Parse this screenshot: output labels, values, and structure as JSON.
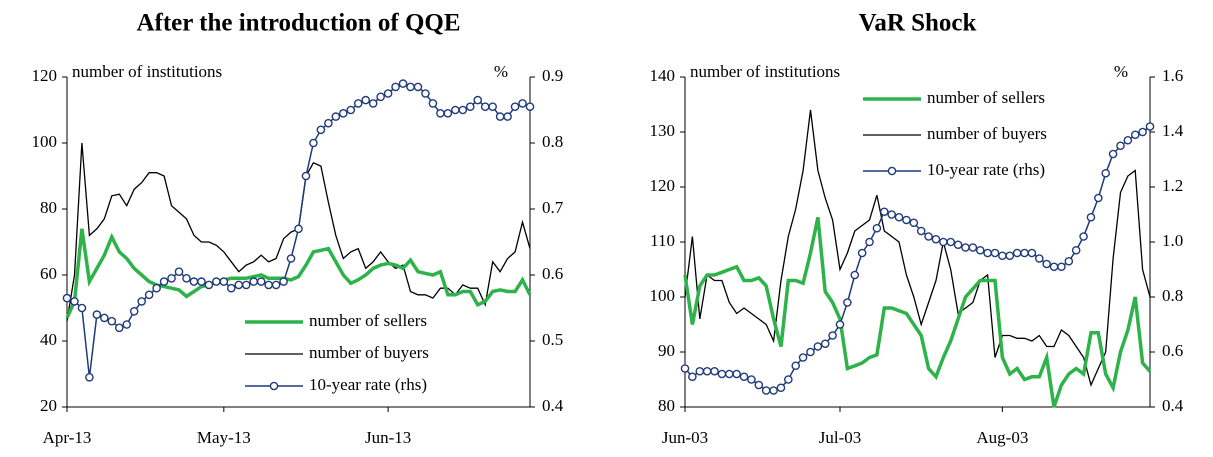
{
  "chart_data": [
    {
      "type": "line",
      "title": "After the introduction of QQE",
      "ylabel": "number of institutions",
      "y2label": "%",
      "legend": "lower right",
      "categories": [
        "Apr-13",
        null,
        null,
        null,
        null,
        null,
        null,
        null,
        null,
        null,
        null,
        null,
        null,
        null,
        null,
        null,
        null,
        null,
        null,
        null,
        null,
        "May-13",
        null,
        null,
        null,
        null,
        null,
        null,
        null,
        null,
        null,
        null,
        null,
        null,
        null,
        null,
        null,
        null,
        null,
        null,
        null,
        null,
        null,
        "Jun-13",
        null,
        null,
        null,
        null,
        null,
        null,
        null,
        null,
        null,
        null,
        null,
        null,
        null,
        null,
        null,
        null,
        null,
        null,
        null
      ],
      "ylim": [
        20,
        120
      ],
      "yticks": [
        20,
        40,
        60,
        80,
        100,
        120
      ],
      "y2lim": [
        0.4,
        0.9
      ],
      "y2ticks": [
        0.4,
        0.5,
        0.6,
        0.7,
        0.8,
        0.9
      ],
      "series": [
        {
          "name": "number of sellers",
          "color": "#2db34a",
          "values": [
            47,
            52,
            74,
            58,
            62,
            66,
            71.5,
            67,
            65,
            62,
            60,
            58,
            57,
            56.5,
            56,
            55.5,
            53.5,
            55,
            56.5,
            57,
            58,
            58.5,
            59,
            59,
            59,
            59.5,
            60,
            59,
            59,
            59,
            58.5,
            59.5,
            63,
            67,
            67.5,
            68,
            64,
            60,
            57.5,
            58.5,
            60,
            62,
            63,
            63.5,
            63,
            62,
            64.5,
            61,
            60.5,
            60,
            61,
            54,
            54,
            55,
            55,
            51,
            52,
            55,
            55.5,
            55,
            55,
            58.5,
            54
          ]
        },
        {
          "name": "number of buyers",
          "color": "#000000",
          "values": [
            46,
            60,
            100,
            72,
            74,
            77,
            84,
            84.5,
            81,
            86,
            88,
            91,
            91,
            90,
            81,
            79,
            77,
            72,
            70,
            70,
            69,
            67,
            64,
            61,
            63,
            64,
            66,
            64,
            65,
            71,
            73,
            74,
            90,
            94,
            93,
            82,
            72,
            65,
            67,
            68,
            62,
            64,
            67,
            64,
            62,
            63,
            55,
            54,
            54,
            53,
            56,
            56,
            54,
            57,
            56,
            56,
            51,
            64,
            61,
            65,
            67,
            76,
            68
          ]
        },
        {
          "name": "10-year rate (rhs)",
          "color": "#1f3a7a",
          "axis": "y2",
          "values": [
            0.565,
            0.56,
            0.55,
            0.445,
            0.54,
            0.535,
            0.53,
            0.52,
            0.525,
            0.545,
            0.56,
            0.57,
            0.58,
            0.59,
            0.595,
            0.605,
            0.595,
            0.59,
            0.59,
            0.585,
            0.59,
            0.59,
            0.58,
            0.585,
            0.585,
            0.59,
            0.59,
            0.585,
            0.585,
            0.59,
            0.625,
            0.67,
            0.75,
            0.8,
            0.82,
            0.83,
            0.84,
            0.845,
            0.85,
            0.86,
            0.865,
            0.86,
            0.87,
            0.875,
            0.885,
            0.89,
            0.885,
            0.885,
            0.875,
            0.86,
            0.845,
            0.845,
            0.85,
            0.85,
            0.855,
            0.865,
            0.855,
            0.855,
            0.84,
            0.84,
            0.855,
            0.86,
            0.855
          ]
        }
      ]
    },
    {
      "type": "line",
      "title": "VaR Shock",
      "ylabel": "number of institutions",
      "y2label": "%",
      "legend": "upper center",
      "categories": [
        "Jun-03",
        null,
        null,
        null,
        null,
        null,
        null,
        null,
        null,
        null,
        null,
        null,
        null,
        null,
        null,
        null,
        null,
        null,
        null,
        null,
        null,
        "Jul-03",
        null,
        null,
        null,
        null,
        null,
        null,
        null,
        null,
        null,
        null,
        null,
        null,
        null,
        null,
        null,
        null,
        null,
        null,
        null,
        null,
        null,
        "Aug-03",
        null,
        null,
        null,
        null,
        null,
        null,
        null,
        null,
        null,
        null,
        null,
        null,
        null,
        null,
        null,
        null,
        null,
        null,
        null,
        null
      ],
      "ylim": [
        80,
        140
      ],
      "yticks": [
        80,
        90,
        100,
        110,
        120,
        130,
        140
      ],
      "y2lim": [
        0.4,
        1.6
      ],
      "y2ticks": [
        0.4,
        0.6,
        0.8,
        {
          "value": 1,
          "label": "1.0"
        },
        1.2,
        1.4,
        1.6
      ],
      "series": [
        {
          "name": "number of sellers",
          "color": "#2db34a",
          "values": [
            104,
            95,
            102,
            104,
            104,
            104.5,
            105,
            105.5,
            103,
            103,
            103.5,
            102,
            96,
            91,
            103,
            103,
            102.5,
            108,
            114.5,
            101,
            99,
            96,
            87,
            87.5,
            88,
            89,
            89.5,
            98,
            98,
            97.5,
            97,
            95,
            93,
            87,
            85.5,
            89,
            92,
            96,
            100,
            101.5,
            103,
            103,
            103,
            89,
            86,
            87,
            85,
            85.5,
            85.5,
            89,
            80,
            84,
            86,
            87,
            86,
            93.5,
            93.5,
            86,
            83.5,
            90,
            94,
            100,
            88,
            86.5
          ]
        },
        {
          "name": "number of buyers",
          "color": "#000000",
          "values": [
            100,
            111,
            96,
            104,
            103,
            103,
            99,
            97,
            98,
            97,
            96,
            95,
            92,
            103,
            111,
            116,
            123,
            134,
            123,
            118,
            114,
            105,
            108,
            112,
            113,
            114,
            118.5,
            112,
            111,
            110,
            104,
            100,
            95,
            99,
            103,
            110,
            105,
            97,
            98,
            99,
            103,
            104,
            89,
            93,
            93,
            92.5,
            92.5,
            92,
            93,
            91,
            91,
            94,
            93,
            91,
            89,
            84,
            87,
            90,
            107,
            119,
            122,
            123,
            105,
            100
          ]
        },
        {
          "name": "10-year rate (rhs)",
          "color": "#1f3a7a",
          "axis": "y2",
          "values": [
            0.54,
            0.51,
            0.53,
            0.53,
            0.53,
            0.52,
            0.52,
            0.52,
            0.51,
            0.5,
            0.48,
            0.46,
            0.46,
            0.47,
            0.5,
            0.55,
            0.58,
            0.6,
            0.62,
            0.63,
            0.66,
            0.7,
            0.78,
            0.88,
            0.96,
            1.0,
            1.05,
            1.11,
            1.1,
            1.09,
            1.08,
            1.07,
            1.04,
            1.02,
            1.01,
            1.0,
            1.0,
            0.99,
            0.98,
            0.98,
            0.97,
            0.96,
            0.96,
            0.95,
            0.95,
            0.96,
            0.96,
            0.96,
            0.94,
            0.92,
            0.91,
            0.91,
            0.93,
            0.97,
            1.02,
            1.09,
            1.16,
            1.25,
            1.32,
            1.35,
            1.37,
            1.39,
            1.4,
            1.42
          ]
        }
      ]
    }
  ]
}
